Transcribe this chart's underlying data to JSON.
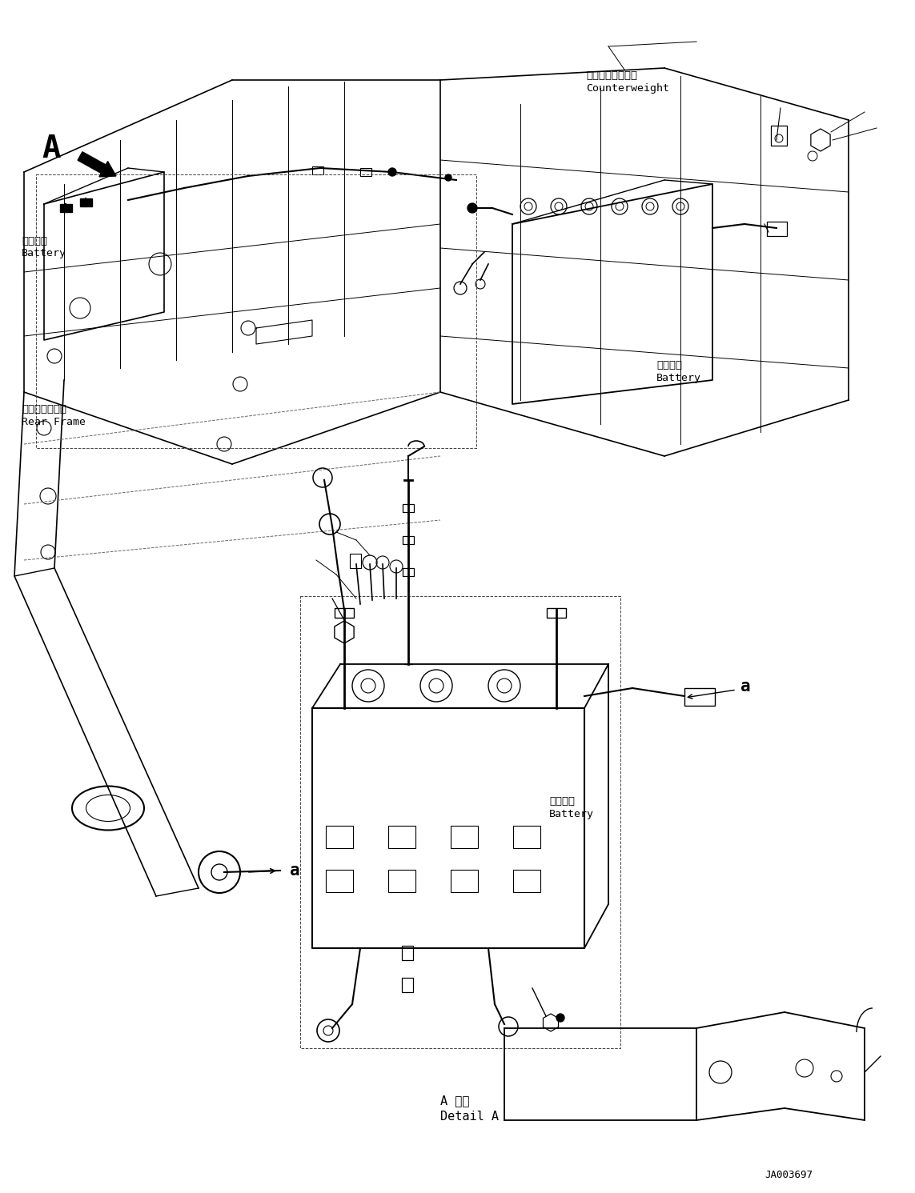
{
  "bg_color": "#ffffff",
  "line_color": "#000000",
  "fig_width": 11.43,
  "fig_height": 14.91,
  "dpi": 100,
  "labels": {
    "counterweight_jp": "カウンタウェイト",
    "counterweight_en": "Counterweight",
    "battery_jp": "バッテリ",
    "battery_en": "Battery",
    "rear_frame_jp": "リヤーフレーム",
    "rear_frame_en": "Rear Frame",
    "detail_a_jp": "A 詳細",
    "detail_a_en": "Detail A",
    "reference_code": "JA003697",
    "label_a": "A",
    "label_a_small": "a"
  },
  "font_sizes": {
    "label_large": 16,
    "label_medium": 12,
    "label_small": 10,
    "annotation": 9,
    "ref_code": 9
  }
}
